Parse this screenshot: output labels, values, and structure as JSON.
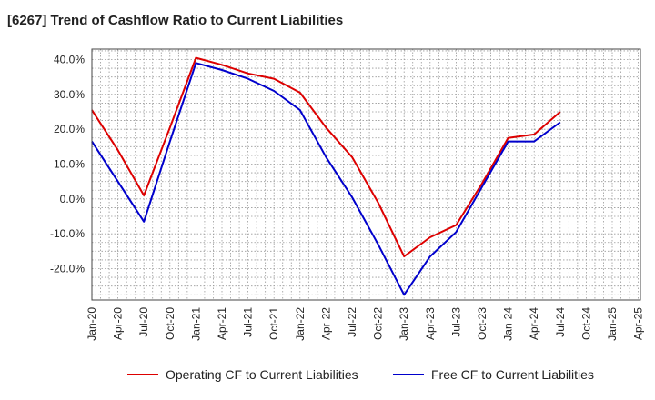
{
  "chart_data": {
    "type": "line",
    "title": "[6267]  Trend of Cashflow Ratio to Current Liabilities",
    "xlabel": "",
    "ylabel": "",
    "x": [
      "Jan-20",
      "Apr-20",
      "Jul-20",
      "Oct-20",
      "Jan-21",
      "Apr-21",
      "Jul-21",
      "Oct-21",
      "Jan-22",
      "Apr-22",
      "Jul-22",
      "Oct-22",
      "Jan-23",
      "Apr-23",
      "Jul-23",
      "Oct-23",
      "Jan-24",
      "Apr-24",
      "Jul-24",
      "Oct-24",
      "Jan-25",
      "Apr-25"
    ],
    "y_ticks": [
      "40.0%",
      "30.0%",
      "20.0%",
      "10.0%",
      "0.0%",
      "-10.0%",
      "-20.0%"
    ],
    "y_tick_values": [
      40,
      30,
      20,
      10,
      0,
      -10,
      -20
    ],
    "ylim": [
      -29,
      43
    ],
    "grid": true,
    "legend_position": "bottom",
    "series": [
      {
        "name": "Operating CF to Current Liabilities",
        "color": "#dd0000",
        "values": [
          25.5,
          14.0,
          1.0,
          20.5,
          40.5,
          38.5,
          36.0,
          34.5,
          30.5,
          20.5,
          12.0,
          -1.0,
          -16.5,
          -11.0,
          -7.5,
          4.5,
          17.5,
          18.5,
          25.0,
          null,
          null,
          null
        ]
      },
      {
        "name": "Free CF to Current Liabilities",
        "color": "#0000cc",
        "values": [
          16.5,
          5.0,
          -6.5,
          16.5,
          39.0,
          37.0,
          34.5,
          31.0,
          25.5,
          12.0,
          0.5,
          -13.0,
          -27.5,
          -16.5,
          -9.5,
          3.5,
          16.5,
          16.5,
          22.0,
          null,
          null,
          null
        ]
      }
    ]
  }
}
